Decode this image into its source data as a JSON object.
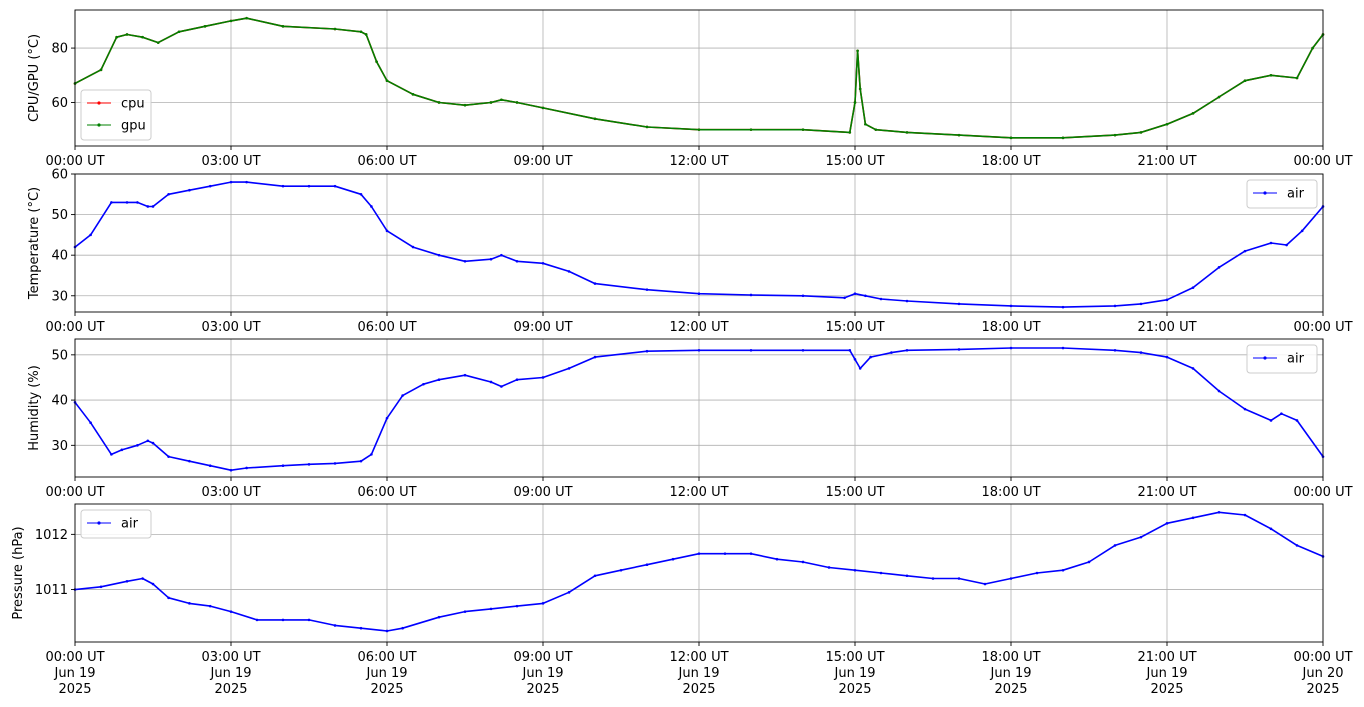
{
  "chart_data": [
    {
      "type": "line",
      "ylabel": "CPU/GPU (°C)",
      "ylim": [
        44,
        94
      ],
      "yticks": [
        60,
        80
      ],
      "x_ticks": [
        "00:00 UT",
        "03:00 UT",
        "06:00 UT",
        "09:00 UT",
        "12:00 UT",
        "15:00 UT",
        "18:00 UT",
        "21:00 UT",
        "00:00 UT"
      ],
      "x_hours": [
        0,
        24
      ],
      "grid": true,
      "legend": "lower-left",
      "series": [
        {
          "name": "cpu",
          "color": "#ff0000",
          "x": [
            0,
            0.5,
            0.8,
            1.0,
            1.3,
            1.6,
            2.0,
            2.5,
            3.0,
            3.3,
            4.0,
            5.0,
            5.5,
            5.6,
            5.8,
            6.0,
            6.5,
            7.0,
            7.5,
            8.0,
            8.2,
            8.5,
            9.0,
            10.0,
            11.0,
            12.0,
            13.0,
            14.0,
            14.9,
            15.0,
            15.05,
            15.1,
            15.2,
            15.4,
            16.0,
            17.0,
            18.0,
            19.0,
            20.0,
            20.5,
            21.0,
            21.5,
            22.0,
            22.5,
            23.0,
            23.5,
            23.8,
            24.0
          ],
          "y": [
            67,
            72,
            84,
            85,
            84,
            82,
            86,
            88,
            90,
            91,
            88,
            87,
            86,
            85,
            75,
            68,
            63,
            60,
            59,
            60,
            61,
            60,
            58,
            54,
            51,
            50,
            50,
            50,
            49,
            60,
            79,
            65,
            52,
            50,
            49,
            48,
            47,
            47,
            48,
            49,
            52,
            56,
            62,
            68,
            70,
            69,
            80,
            85
          ]
        },
        {
          "name": "gpu",
          "color": "#008000",
          "x": [
            0,
            0.5,
            0.8,
            1.0,
            1.3,
            1.6,
            2.0,
            2.5,
            3.0,
            3.3,
            4.0,
            5.0,
            5.5,
            5.6,
            5.8,
            6.0,
            6.5,
            7.0,
            7.5,
            8.0,
            8.2,
            8.5,
            9.0,
            10.0,
            11.0,
            12.0,
            13.0,
            14.0,
            14.9,
            15.0,
            15.05,
            15.1,
            15.2,
            15.4,
            16.0,
            17.0,
            18.0,
            19.0,
            20.0,
            20.5,
            21.0,
            21.5,
            22.0,
            22.5,
            23.0,
            23.5,
            23.8,
            24.0
          ],
          "y": [
            67,
            72,
            84,
            85,
            84,
            82,
            86,
            88,
            90,
            91,
            88,
            87,
            86,
            85,
            75,
            68,
            63,
            60,
            59,
            60,
            61,
            60,
            58,
            54,
            51,
            50,
            50,
            50,
            49,
            60,
            79,
            65,
            52,
            50,
            49,
            48,
            47,
            47,
            48,
            49,
            52,
            56,
            62,
            68,
            70,
            69,
            80,
            85
          ]
        }
      ]
    },
    {
      "type": "line",
      "ylabel": "Temperature (°C)",
      "ylim": [
        26,
        60
      ],
      "yticks": [
        30,
        40,
        50,
        60
      ],
      "x_ticks": [
        "00:00 UT",
        "03:00 UT",
        "06:00 UT",
        "09:00 UT",
        "12:00 UT",
        "15:00 UT",
        "18:00 UT",
        "21:00 UT",
        "00:00 UT"
      ],
      "x_hours": [
        0,
        24
      ],
      "grid": true,
      "legend": "upper-right",
      "series": [
        {
          "name": "air",
          "color": "#0000ff",
          "x": [
            0,
            0.3,
            0.7,
            1.0,
            1.2,
            1.4,
            1.5,
            1.8,
            2.2,
            2.6,
            3.0,
            3.3,
            4.0,
            4.5,
            5.0,
            5.5,
            5.7,
            6.0,
            6.5,
            7.0,
            7.5,
            8.0,
            8.2,
            8.5,
            9.0,
            9.5,
            10.0,
            11.0,
            12.0,
            13.0,
            14.0,
            14.8,
            15.0,
            15.2,
            15.5,
            16.0,
            17.0,
            18.0,
            19.0,
            20.0,
            20.5,
            21.0,
            21.5,
            22.0,
            22.5,
            23.0,
            23.3,
            23.6,
            24.0
          ],
          "y": [
            42,
            45,
            53,
            53,
            53,
            52,
            52,
            55,
            56,
            57,
            58,
            58,
            57,
            57,
            57,
            55,
            52,
            46,
            42,
            40,
            38.5,
            39,
            40,
            38.5,
            38,
            36,
            33,
            31.5,
            30.5,
            30.2,
            30,
            29.5,
            30.5,
            30,
            29.2,
            28.7,
            28,
            27.5,
            27.2,
            27.5,
            28,
            29,
            32,
            37,
            41,
            43,
            42.5,
            46,
            52
          ]
        }
      ]
    },
    {
      "type": "line",
      "ylabel": "Humidity (%)",
      "ylim": [
        23,
        53.5
      ],
      "yticks": [
        30,
        40,
        50
      ],
      "x_ticks": [
        "00:00 UT",
        "03:00 UT",
        "06:00 UT",
        "09:00 UT",
        "12:00 UT",
        "15:00 UT",
        "18:00 UT",
        "21:00 UT",
        "00:00 UT"
      ],
      "x_hours": [
        0,
        24
      ],
      "grid": true,
      "legend": "upper-right",
      "series": [
        {
          "name": "air",
          "color": "#0000ff",
          "x": [
            0,
            0.3,
            0.7,
            0.9,
            1.2,
            1.4,
            1.5,
            1.8,
            2.2,
            2.6,
            3.0,
            3.3,
            4.0,
            4.5,
            5.0,
            5.5,
            5.7,
            6.0,
            6.3,
            6.7,
            7.0,
            7.5,
            8.0,
            8.2,
            8.5,
            9.0,
            9.5,
            10.0,
            11.0,
            12.0,
            13.0,
            14.0,
            14.9,
            15.0,
            15.1,
            15.3,
            15.7,
            16.0,
            17.0,
            18.0,
            19.0,
            20.0,
            20.5,
            21.0,
            21.5,
            22.0,
            22.5,
            23.0,
            23.2,
            23.5,
            24.0
          ],
          "y": [
            39.5,
            35,
            28,
            29,
            30,
            31,
            30.5,
            27.5,
            26.5,
            25.5,
            24.5,
            25,
            25.5,
            25.8,
            26,
            26.5,
            28,
            36,
            41,
            43.5,
            44.5,
            45.5,
            44,
            43,
            44.5,
            45,
            47,
            49.5,
            50.8,
            51,
            51,
            51,
            51,
            49,
            47,
            49.5,
            50.5,
            51,
            51.2,
            51.5,
            51.5,
            51,
            50.5,
            49.5,
            47,
            42,
            38,
            35.5,
            37,
            35.5,
            27.5
          ]
        }
      ]
    },
    {
      "type": "line",
      "ylabel": "Pressure (hPa)",
      "ylim": [
        1010.05,
        1012.55
      ],
      "yticks": [
        1011,
        1012
      ],
      "x_ticks": [
        "00:00 UT",
        "03:00 UT",
        "06:00 UT",
        "09:00 UT",
        "12:00 UT",
        "15:00 UT",
        "18:00 UT",
        "21:00 UT",
        "00:00 UT"
      ],
      "x_sub": [
        [
          "Jun 19",
          "2025"
        ],
        [
          "Jun 19",
          "2025"
        ],
        [
          "Jun 19",
          "2025"
        ],
        [
          "Jun 19",
          "2025"
        ],
        [
          "Jun 19",
          "2025"
        ],
        [
          "Jun 19",
          "2025"
        ],
        [
          "Jun 19",
          "2025"
        ],
        [
          "Jun 19",
          "2025"
        ],
        [
          "Jun 20",
          "2025"
        ]
      ],
      "x_hours": [
        0,
        24
      ],
      "grid": true,
      "legend": "upper-left",
      "series": [
        {
          "name": "air",
          "color": "#0000ff",
          "x": [
            0,
            0.5,
            1.0,
            1.3,
            1.5,
            1.8,
            2.2,
            2.6,
            3.0,
            3.5,
            4.0,
            4.5,
            5.0,
            5.5,
            6.0,
            6.3,
            7.0,
            7.5,
            8.0,
            8.5,
            9.0,
            9.5,
            10.0,
            10.5,
            11.0,
            11.5,
            12.0,
            12.5,
            13.0,
            13.5,
            14.0,
            14.5,
            15.0,
            15.5,
            16.0,
            16.5,
            17.0,
            17.5,
            18.0,
            18.5,
            19.0,
            19.5,
            20.0,
            20.5,
            21.0,
            21.5,
            22.0,
            22.5,
            23.0,
            23.5,
            24.0
          ],
          "y": [
            1011.0,
            1011.05,
            1011.15,
            1011.2,
            1011.1,
            1010.85,
            1010.75,
            1010.7,
            1010.6,
            1010.45,
            1010.45,
            1010.45,
            1010.35,
            1010.3,
            1010.25,
            1010.3,
            1010.5,
            1010.6,
            1010.65,
            1010.7,
            1010.75,
            1010.95,
            1011.25,
            1011.35,
            1011.45,
            1011.55,
            1011.65,
            1011.65,
            1011.65,
            1011.55,
            1011.5,
            1011.4,
            1011.35,
            1011.3,
            1011.25,
            1011.2,
            1011.2,
            1011.1,
            1011.2,
            1011.3,
            1011.35,
            1011.5,
            1011.8,
            1011.95,
            1012.2,
            1012.3,
            1012.4,
            1012.35,
            1012.1,
            1011.8,
            1011.6
          ]
        }
      ]
    }
  ]
}
